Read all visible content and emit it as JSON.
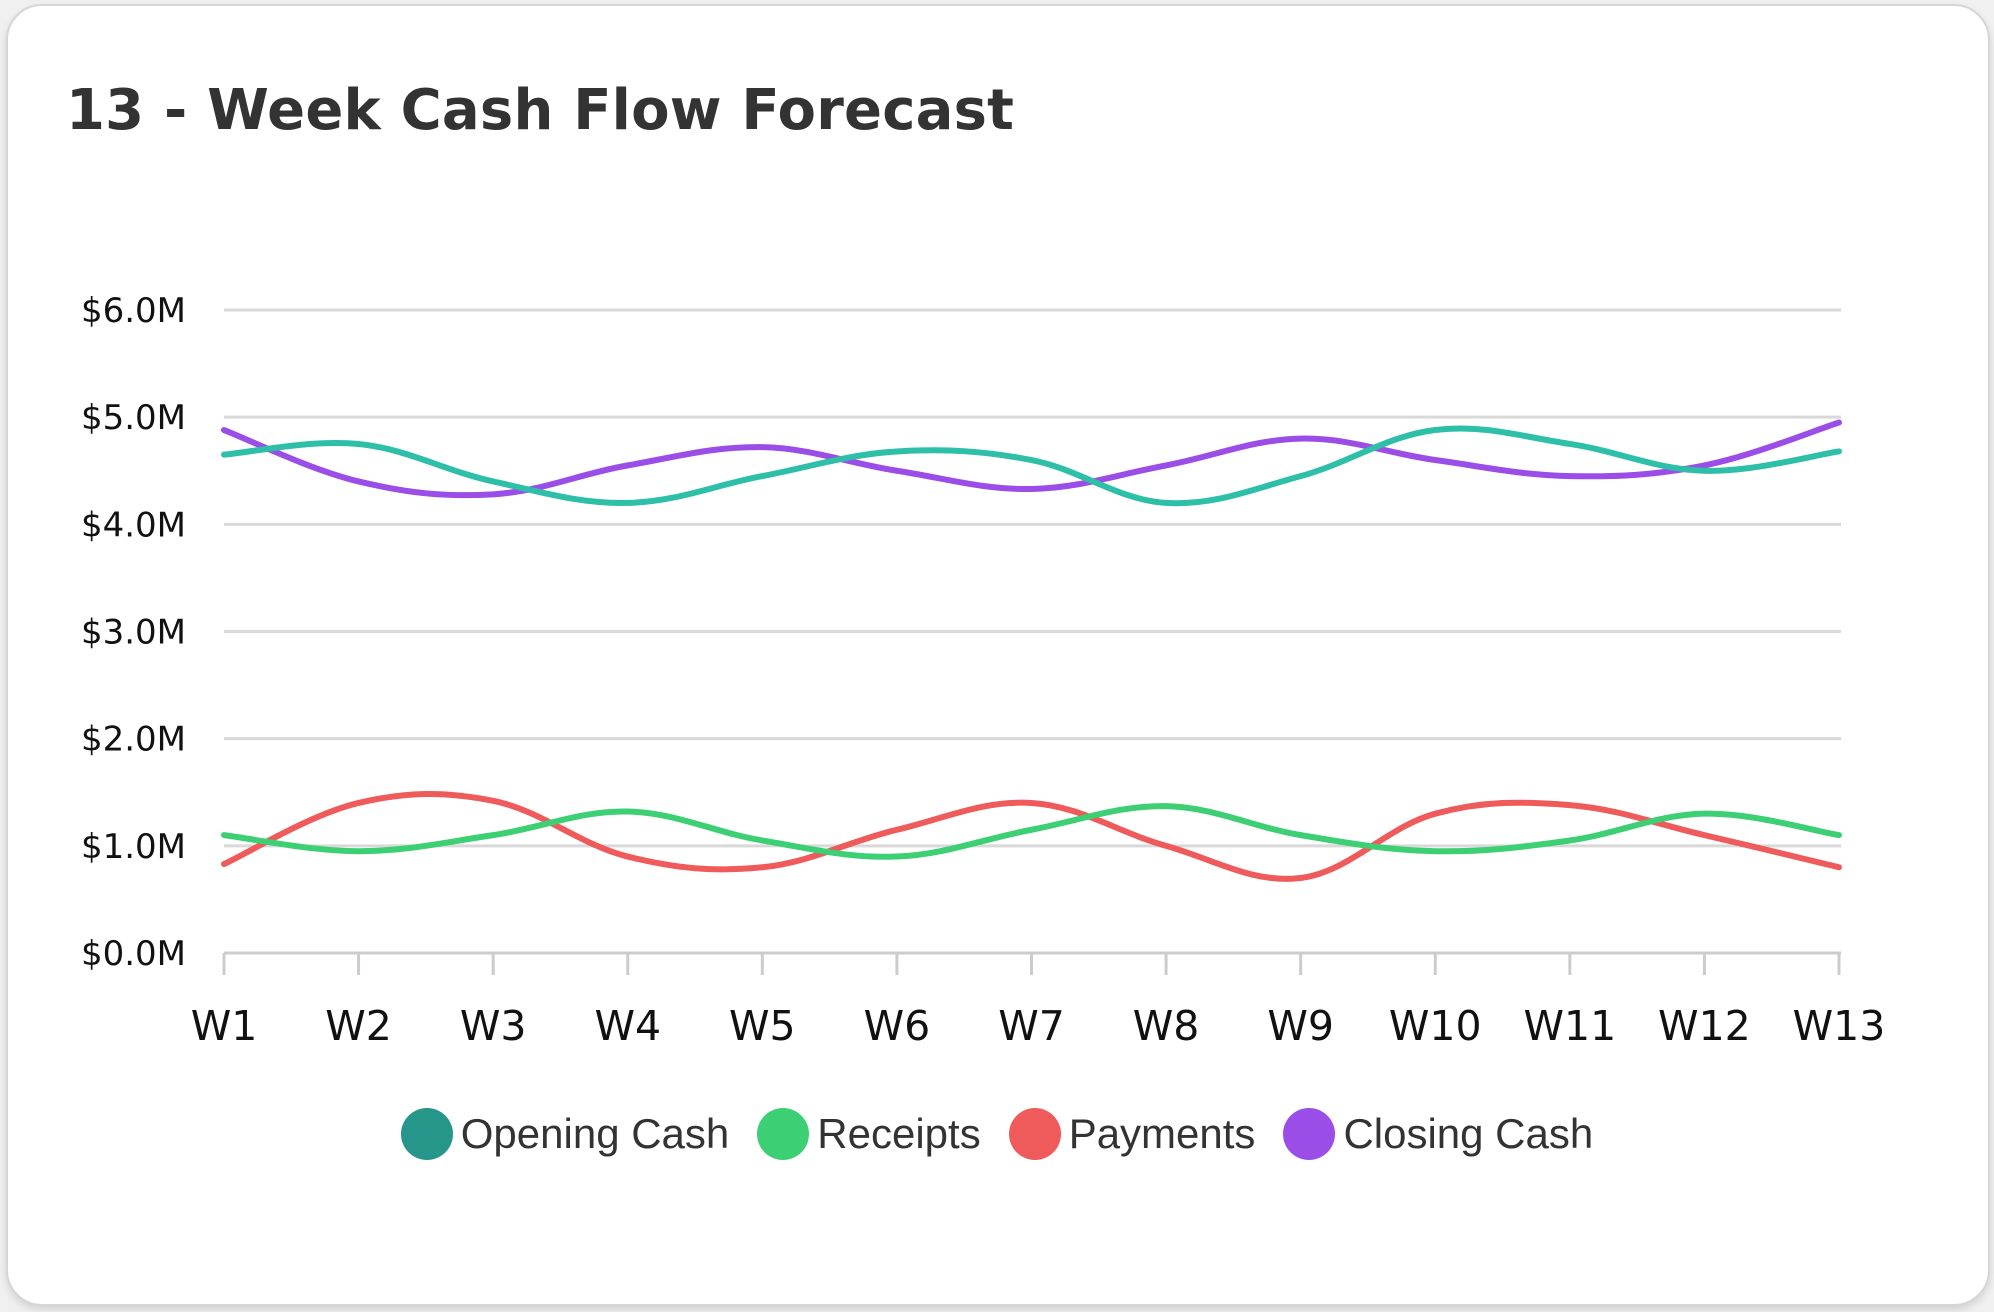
{
  "chart_data": {
    "type": "line",
    "title": "13 - Week Cash Flow Forecast",
    "categories": [
      "W1",
      "W2",
      "W3",
      "W4",
      "W5",
      "W6",
      "W7",
      "W8",
      "W9",
      "W10",
      "W11",
      "W12",
      "W13"
    ],
    "y_ticks": [
      "$0.0M",
      "$1.0M",
      "$2.0M",
      "$3.0M",
      "$4.0M",
      "$5.0M",
      "$6.0M"
    ],
    "ylim": [
      0,
      6
    ],
    "grid": true,
    "legend_position": "bottom",
    "series": [
      {
        "name": "Opening Cash",
        "legend_color": "#26968a",
        "line_color": "#2ebfa8",
        "values": [
          4.65,
          4.75,
          4.4,
          4.2,
          4.45,
          4.68,
          4.6,
          4.2,
          4.45,
          4.88,
          4.75,
          4.5,
          4.68
        ]
      },
      {
        "name": "Receipts",
        "legend_color": "#3dcf73",
        "line_color": "#3dcf73",
        "values": [
          1.1,
          0.95,
          1.1,
          1.32,
          1.05,
          0.9,
          1.15,
          1.37,
          1.1,
          0.95,
          1.05,
          1.3,
          1.1
        ]
      },
      {
        "name": "Payments",
        "legend_color": "#ef5b5b",
        "line_color": "#ef5b5b",
        "values": [
          0.83,
          1.4,
          1.42,
          0.9,
          0.8,
          1.15,
          1.4,
          1.0,
          0.7,
          1.3,
          1.38,
          1.1,
          0.8
        ]
      },
      {
        "name": "Closing Cash",
        "legend_color": "#9b4de8",
        "line_color": "#9b4de8",
        "values": [
          4.88,
          4.4,
          4.28,
          4.55,
          4.72,
          4.5,
          4.33,
          4.55,
          4.8,
          4.6,
          4.45,
          4.55,
          4.95
        ]
      }
    ]
  }
}
